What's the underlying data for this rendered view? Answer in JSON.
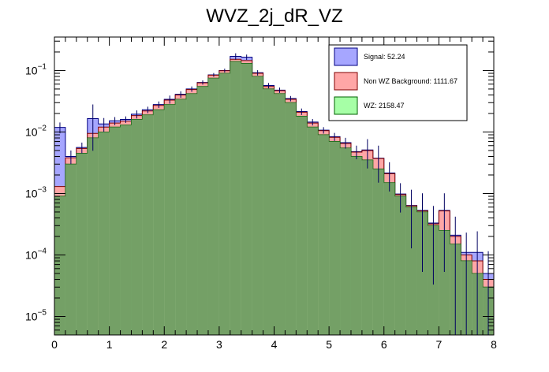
{
  "chart_data": {
    "type": "histogram",
    "title": "WVZ_2j_dR_VZ",
    "xlabel": "",
    "ylabel": "",
    "xlim": [
      0,
      8
    ],
    "ylim": [
      5e-06,
      0.35
    ],
    "yscale": "log",
    "bin_width": 0.2,
    "x_ticks": [
      "0",
      "1",
      "2",
      "3",
      "4",
      "5",
      "6",
      "7",
      "8"
    ],
    "y_ticks": [
      {
        "value": 1e-05,
        "base": "10",
        "exp": "−5"
      },
      {
        "value": 0.0001,
        "base": "10",
        "exp": "−4"
      },
      {
        "value": 0.001,
        "base": "10",
        "exp": "−3"
      },
      {
        "value": 0.01,
        "base": "10",
        "exp": "−2"
      },
      {
        "value": 0.1,
        "base": "10",
        "exp": "−1"
      }
    ],
    "legend": [
      {
        "label": "Signal: 52.24",
        "color": "#a6a6ff",
        "border": "#000080"
      },
      {
        "label": "Non WZ Background: 1111.67",
        "color": "#ffa6a6",
        "border": "#800000"
      },
      {
        "label": "WZ: 2158.47",
        "color": "#a6ffa6",
        "border": "#006000"
      }
    ],
    "series": [
      {
        "name": "WZ",
        "color": "#00a050",
        "values": [
          0.0009,
          0.003,
          0.0045,
          0.008,
          0.01,
          0.012,
          0.013,
          0.016,
          0.019,
          0.023,
          0.028,
          0.034,
          0.042,
          0.055,
          0.075,
          0.09,
          0.14,
          0.13,
          0.08,
          0.05,
          0.042,
          0.03,
          0.018,
          0.012,
          0.009,
          0.007,
          0.0055,
          0.004,
          0.0035,
          0.0025,
          0.0015,
          0.0009,
          0.0006,
          0.0005,
          0.0003,
          0.00025,
          0.00015,
          8e-05,
          5e-05,
          3e-05
        ]
      },
      {
        "name": "Non WZ Background",
        "color": "#b04040",
        "values": [
          0.0004,
          0.0008,
          0.0009,
          0.0015,
          0.002,
          0.002,
          0.002,
          0.0025,
          0.003,
          0.004,
          0.005,
          0.006,
          0.007,
          0.008,
          0.009,
          0.009,
          0.012,
          0.015,
          0.01,
          0.005,
          0.005,
          0.004,
          0.003,
          0.002,
          0.0015,
          0.0012,
          0.001,
          0.0007,
          0.0015,
          0.0012,
          0.0006,
          6e-05,
          3e-05,
          2e-05,
          2e-05,
          0.00027,
          5e-05,
          2e-05,
          3e-05,
          1e-05
        ]
      },
      {
        "name": "Signal",
        "color": "#3030c0",
        "values": [
          0.0106,
          0.0002,
          0.0002,
          0.007,
          0.0015,
          0.0012,
          0.001,
          0.001,
          0.001,
          0.001,
          0.001,
          0.001,
          0.001,
          0.001,
          0.001,
          0.001,
          0.018,
          0.02,
          0.002,
          0.002,
          0.001,
          0.001,
          0.0005,
          0.0005,
          0.0002,
          0.0002,
          0.0002,
          0.0001,
          0.0001,
          5e-05,
          5e-05,
          2e-05,
          1e-05,
          1e-05,
          1e-05,
          1e-05,
          1e-05,
          1e-05,
          3e-05,
          1e-05
        ]
      }
    ],
    "uncertainty": [
      0.2,
      0.25,
      0.2,
      0.7,
      0.25,
      0.15,
      0.12,
      0.15,
      0.12,
      0.12,
      0.15,
      0.12,
      0.1,
      0.08,
      0.07,
      0.07,
      0.12,
      0.1,
      0.1,
      0.1,
      0.1,
      0.1,
      0.12,
      0.12,
      0.12,
      0.15,
      0.2,
      0.25,
      0.5,
      0.6,
      0.5,
      0.5,
      0.8,
      0.9,
      0.9,
      0.9,
      1.0,
      1.1,
      1.2,
      1.3
    ]
  }
}
